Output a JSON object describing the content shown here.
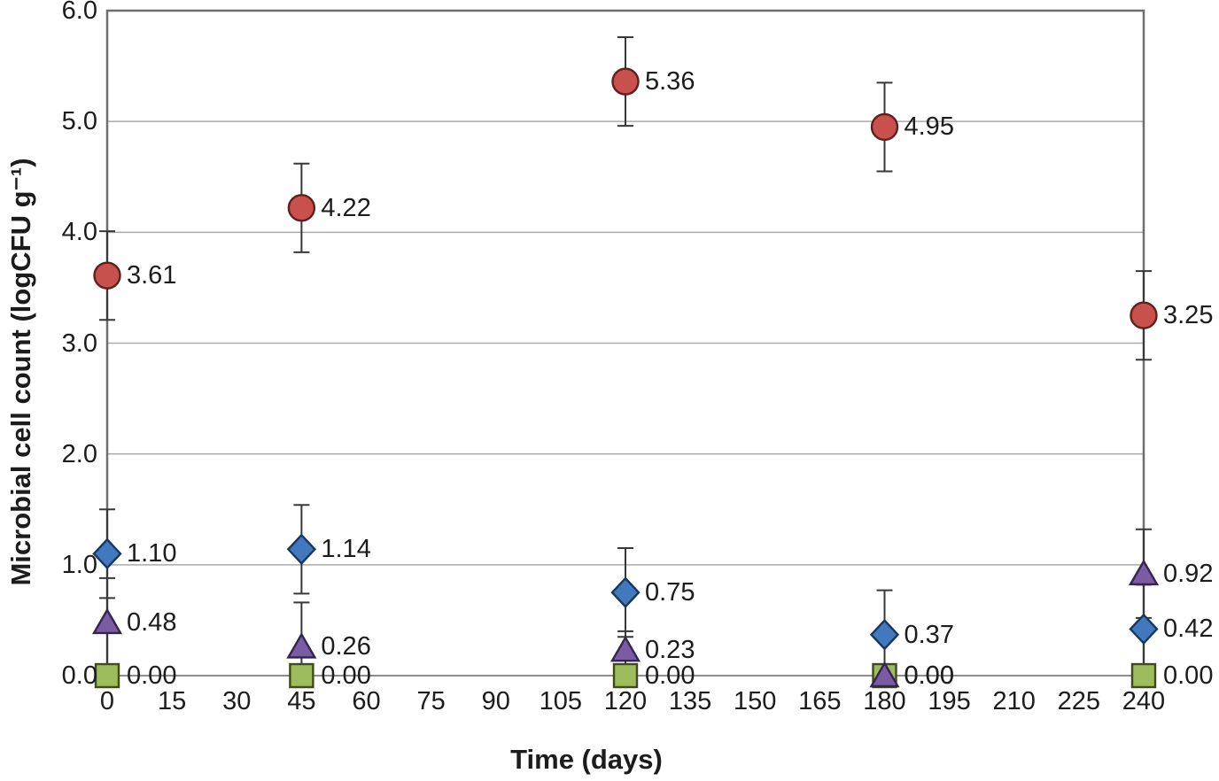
{
  "figure": {
    "background": "#ffffff",
    "x_axis_title": "Time (days)",
    "y_axis_title": "Microbial cell count (logCFU g⁻¹)"
  },
  "chart_data": {
    "type": "scatter",
    "title": "",
    "xlabel": "Time (days)",
    "ylabel": "Microbial cell count (logCFU g⁻¹)",
    "xlim": [
      0,
      240
    ],
    "ylim": [
      0,
      6
    ],
    "grid": "horizontal",
    "legend": "none",
    "x_tick_values": [
      0,
      15,
      30,
      45,
      60,
      75,
      90,
      105,
      120,
      135,
      150,
      165,
      180,
      195,
      210,
      225,
      240
    ],
    "x_tick_labels": [
      "0",
      "15",
      "30",
      "45",
      "60",
      "75",
      "90",
      "105",
      "120",
      "135",
      "150",
      "165",
      "180",
      "195",
      "210",
      "225",
      "240"
    ],
    "y_tick_values": [
      6,
      5,
      4,
      3,
      2,
      1,
      0
    ],
    "y_tick_labels": [
      "6.0",
      "5.0",
      "4.0",
      "3.0",
      "2.0",
      "1.0",
      "0.0"
    ],
    "x": [
      0,
      45,
      120,
      180,
      240
    ],
    "error_bar_color": "#383838",
    "gridline_color": "#a9a9a9",
    "axis_line_color": "#8c8c8c",
    "plot_border_color": "#6e6e6e",
    "series": [
      {
        "name": "red-circle-series",
        "marker": "circle",
        "fill": "#c8504d",
        "stroke": "#5f1f1d",
        "values": [
          3.61,
          4.22,
          5.36,
          4.95,
          3.25
        ],
        "labels": [
          "3.61",
          "4.22",
          "5.36",
          "4.95",
          "3.25"
        ],
        "error": [
          0.4,
          0.4,
          0.4,
          0.4,
          0.4
        ]
      },
      {
        "name": "blue-diamond-series",
        "marker": "diamond",
        "fill": "#4279be",
        "stroke": "#17375e",
        "values": [
          1.1,
          1.14,
          0.75,
          0.37,
          0.42
        ],
        "labels": [
          "1.10",
          "1.14",
          "0.75",
          "0.37",
          "0.42"
        ],
        "error": [
          0.4,
          0.4,
          0.4,
          0.4,
          0.4
        ]
      },
      {
        "name": "green-square-series",
        "marker": "square",
        "fill": "#9dbc5b",
        "stroke": "#3e4a1e",
        "values": [
          0.0,
          0.0,
          0.0,
          0.0,
          0.0
        ],
        "labels": [
          "0.00",
          "0.00",
          "0.00",
          "0.00",
          "0.00"
        ],
        "error": [
          0,
          0,
          0,
          0,
          0
        ]
      },
      {
        "name": "purple-triangle-series",
        "marker": "triangle",
        "fill": "#7a5ca5",
        "stroke": "#32254e",
        "values": [
          0.48,
          0.26,
          0.23,
          0.0,
          0.92
        ],
        "labels": [
          "0.48",
          "0.26",
          "0.23",
          "0.00",
          "0.92"
        ],
        "error": [
          0.4,
          0.4,
          0.17,
          0.4,
          0.4
        ]
      }
    ]
  }
}
